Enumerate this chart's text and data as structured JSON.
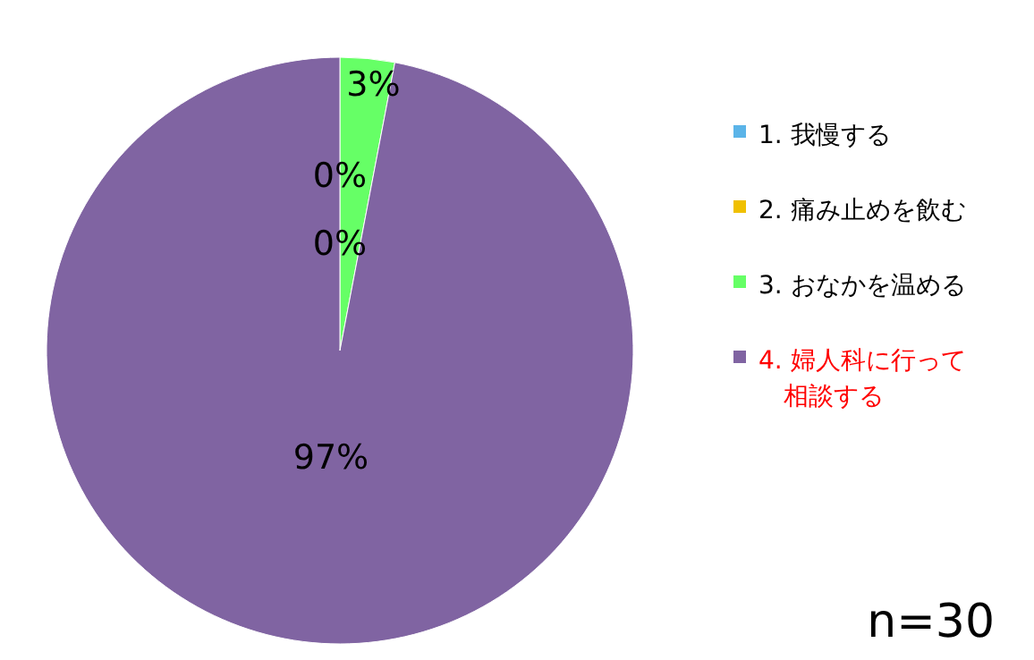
{
  "chart_data": {
    "type": "pie",
    "categories": [
      "1. 我慢する",
      "2. 痛み止めを飲む",
      "3. おなかを温める",
      "4. 婦人科に行って相談する"
    ],
    "values": [
      0,
      0,
      3,
      97
    ],
    "colors": [
      "#5bb4e8",
      "#f0c000",
      "#66ff66",
      "#8064a2"
    ],
    "value_labels": [
      "0%",
      "0%",
      "3%",
      "97%"
    ],
    "legend": "right",
    "annotations": [
      "n=30"
    ]
  }
}
